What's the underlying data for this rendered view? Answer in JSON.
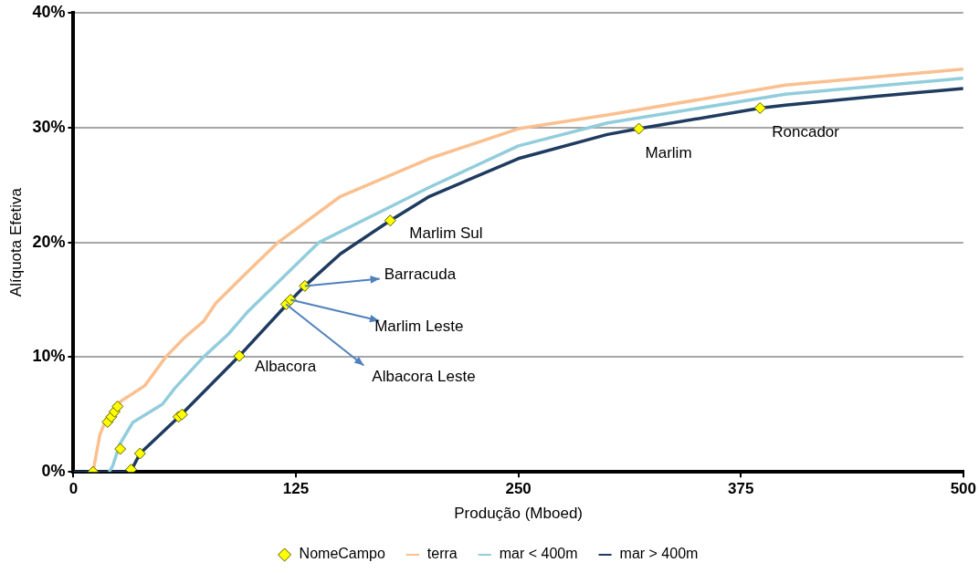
{
  "chart_data": {
    "type": "line",
    "xlabel": "Produção (Mboed)",
    "ylabel": "Alíquota Efetiva",
    "xlim": [
      0,
      500
    ],
    "xticks": [
      0,
      125,
      250,
      375,
      500
    ],
    "ylim": [
      0,
      40
    ],
    "yticks": [
      {
        "value": 0,
        "label": "0%"
      },
      {
        "value": 10,
        "label": "10%"
      },
      {
        "value": 20,
        "label": "20%"
      },
      {
        "value": 30,
        "label": "30%"
      },
      {
        "value": 40,
        "label": "40%"
      }
    ],
    "grid": "y",
    "legend": "bottom",
    "line_style": "solid",
    "series": [
      {
        "name": "NomeCampo",
        "type": "scatter",
        "marker": "diamond",
        "color": "#ffff00",
        "x": [
          11,
          19.2,
          21.3,
          23.1,
          24.8,
          26.3,
          32.4,
          37.4,
          59,
          61,
          93.2,
          119.5,
          122,
          130,
          178,
          317.7,
          385.8
        ],
        "values": [
          0,
          4.35,
          4.8,
          5.25,
          5.7,
          2,
          0.2,
          1.6,
          4.8,
          5,
          10.1,
          14.6,
          15,
          16.2,
          21.9,
          29.9,
          31.7
        ]
      },
      {
        "name": "terra",
        "color": "#fac090",
        "x": [
          11,
          14.8,
          18.3,
          27,
          40,
          51.8,
          62.4,
          73,
          80,
          95,
          115,
          150,
          200,
          250,
          300,
          400,
          500
        ],
        "values": [
          0,
          3.2,
          4.6,
          6.2,
          7.5,
          10,
          11.7,
          13.1,
          14.7,
          17,
          20,
          24,
          27.3,
          29.9,
          31.1,
          33.7,
          35.1
        ]
      },
      {
        "name": "mar < 400m",
        "color": "#92cddc",
        "x": [
          20,
          22,
          26,
          33.3,
          50,
          57,
          73,
          87,
          97.6,
          138,
          200,
          250,
          300,
          400,
          500
        ],
        "values": [
          0,
          0.5,
          2.4,
          4.3,
          5.9,
          7.3,
          10,
          12,
          13.9,
          20,
          24.8,
          28.4,
          30.4,
          32.9,
          34.3
        ]
      },
      {
        "name": "mar > 400m",
        "color": "#1f3b60",
        "x": [
          0,
          32,
          37.4,
          60,
          93.2,
          120,
          130,
          150,
          178,
          200,
          250,
          300,
          317.7,
          385.8,
          400,
          450,
          500
        ],
        "values": [
          0,
          0,
          1.6,
          4.9,
          10.1,
          14.6,
          16.2,
          19,
          21.9,
          24,
          27.3,
          29.4,
          29.9,
          31.7,
          31.95,
          32.7,
          33.4
        ]
      }
    ],
    "annotations": [
      {
        "text": "Albacora",
        "x": 93.2,
        "y": 10.1
      },
      {
        "text": "Albacora Leste",
        "x": 119.5,
        "y": 14.6
      },
      {
        "text": "Marlim Leste",
        "x": 122,
        "y": 15
      },
      {
        "text": "Barracuda",
        "x": 130,
        "y": 16.2
      },
      {
        "text": "Marlim Sul",
        "x": 178,
        "y": 21.9
      },
      {
        "text": "Marlim",
        "x": 317.7,
        "y": 29.9
      },
      {
        "text": "Roncador",
        "x": 385.8,
        "y": 31.7
      }
    ]
  }
}
